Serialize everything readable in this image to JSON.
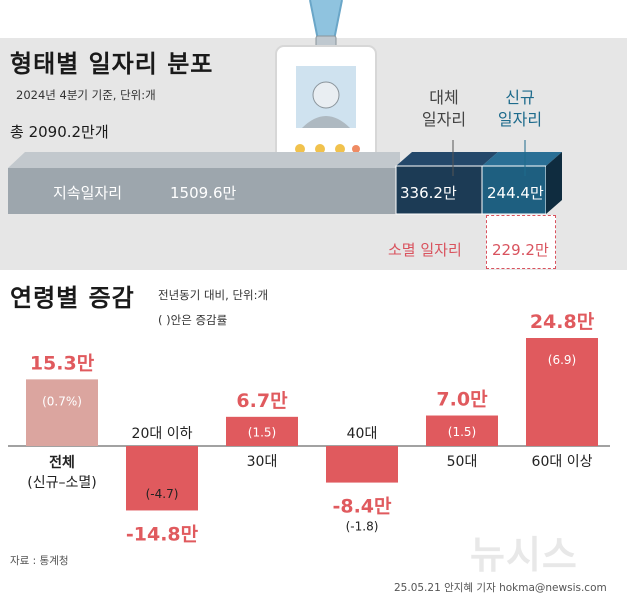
{
  "header": {
    "title": "형태별 일자리 분포",
    "subtitle": "2024년 4분기 기준, 단위:개",
    "total": "총 2090.2만개"
  },
  "distribution": {
    "sustained": {
      "label": "지속일자리",
      "value": "1509.6만"
    },
    "replacement": {
      "label_line1": "대체",
      "label_line2": "일자리",
      "value": "336.2만"
    },
    "new": {
      "label_line1": "신규",
      "label_line2": "일자리",
      "value": "244.4만"
    },
    "extinct": {
      "label": "소멸 일자리",
      "value": "229.2만"
    }
  },
  "age_section": {
    "title": "연령별 증감",
    "note1": "전년동기 대비, 단위:개",
    "note2": "( )안은 증감률",
    "total_label_line1": "전체",
    "total_label_line2": "(신규–소멸)"
  },
  "chart_data": {
    "type": "bar",
    "title": "연령별 증감",
    "categories": [
      "전체",
      "20대 이하",
      "30대",
      "40대",
      "50대",
      "60대 이상"
    ],
    "values": [
      15.3,
      -14.8,
      6.7,
      -8.4,
      7.0,
      24.8
    ],
    "value_labels": [
      "15.3만",
      "-14.8만",
      "6.7만",
      "-8.4만",
      "7.0만",
      "24.8만"
    ],
    "rate_labels": [
      "(0.7%)",
      "(-4.7)",
      "(1.5)",
      "(-1.8)",
      "(1.5)",
      "(6.9)"
    ],
    "unit": "만",
    "colors": {
      "total": "#dba59f",
      "bar": "#e05a5e",
      "text": "#e05a5e"
    }
  },
  "footer": {
    "source": "자료 : 통계청",
    "credit": "25.05.21 안지혜 기자 hokma@newsis.com",
    "watermark": "뉴시스"
  },
  "colors": {
    "background_top": "#e6e6e6",
    "gray_bar": "#9da6ad",
    "navy_box": "#1c3b55",
    "teal_box": "#1e5f80",
    "blue_text": "#1e6b8c",
    "red_text": "#d9535e"
  }
}
